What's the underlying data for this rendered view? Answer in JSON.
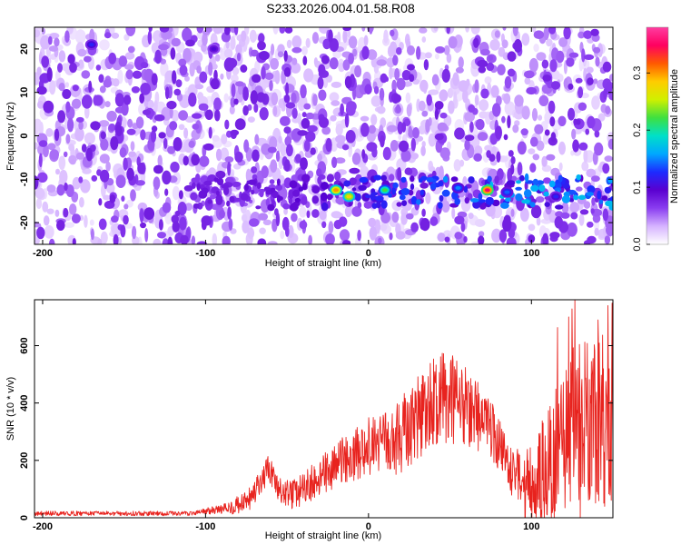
{
  "title": "S233.2026.004.01.58.R08",
  "colors": {
    "series_line": "#e8231e",
    "colormap": [
      "#ffffff",
      "#d6b4ff",
      "#8a3df0",
      "#5a00d0",
      "#1d2bff",
      "#00a8ff",
      "#00e0c8",
      "#3ee040",
      "#d0f000",
      "#ffcc00",
      "#ff5a00",
      "#ff0060",
      "#ff3ca0"
    ]
  },
  "chart_data": [
    {
      "type": "heatmap",
      "xlabel": "Height of straight line (km)",
      "ylabel": "Frequency (Hz)",
      "xlim": [
        -205,
        150
      ],
      "ylim": [
        -25,
        25
      ],
      "xticks": [
        -200,
        -100,
        0,
        100
      ],
      "yticks": [
        -20,
        -10,
        0,
        10,
        20
      ],
      "xtick_labels": [
        "-200",
        "-100",
        "0",
        "100"
      ],
      "ytick_labels": [
        "-20",
        "-10",
        "0",
        "10",
        "20"
      ],
      "colorbar": {
        "label": "Normalized spectral amplitude",
        "range": [
          0,
          0.38
        ],
        "ticks": [
          0.0,
          0.1,
          0.2,
          0.3
        ],
        "tick_labels": [
          "0.0",
          "0.1",
          "0.2",
          "0.3"
        ]
      },
      "hot_band": {
        "frequency": -13,
        "x_from": -110,
        "x_to": 150
      },
      "peaks": [
        {
          "x": -20,
          "frequency": -12.5,
          "value": 0.3
        },
        {
          "x": -12,
          "frequency": -14,
          "value": 0.28
        },
        {
          "x": 10,
          "frequency": -12.5,
          "value": 0.22
        },
        {
          "x": 73,
          "frequency": -12.5,
          "value": 0.35
        },
        {
          "x": 55,
          "frequency": -12,
          "value": 0.15
        },
        {
          "x": 85,
          "frequency": -13,
          "value": 0.14
        },
        {
          "x": -95,
          "frequency": 20,
          "value": 0.1
        },
        {
          "x": -170,
          "frequency": 21,
          "value": 0.12
        },
        {
          "x": 115,
          "frequency": -14,
          "value": 0.12
        }
      ]
    },
    {
      "type": "line",
      "xlabel": "Height of straight line (km)",
      "ylabel": "SNR (10 * v/v)",
      "xlim": [
        -205,
        150
      ],
      "ylim": [
        0,
        760
      ],
      "xticks": [
        -200,
        -100,
        0,
        100
      ],
      "yticks": [
        0,
        200,
        400,
        600
      ],
      "xtick_labels": [
        "-200",
        "-100",
        "0",
        "100"
      ],
      "ytick_labels": [
        "0",
        "200",
        "400",
        "600"
      ],
      "envelope": {
        "x": [
          -205,
          -110,
          -90,
          -75,
          -65,
          -62,
          -55,
          -45,
          -30,
          -15,
          0,
          15,
          25,
          35,
          45,
          55,
          65,
          75,
          85,
          95,
          105,
          115,
          125,
          135,
          145,
          150
        ],
        "y": [
          15,
          15,
          30,
          50,
          120,
          180,
          90,
          80,
          140,
          200,
          250,
          260,
          320,
          380,
          420,
          400,
          380,
          300,
          190,
          130,
          150,
          230,
          320,
          350,
          300,
          320
        ]
      },
      "noise_amplitude": {
        "x": [
          -205,
          -110,
          -90,
          -70,
          -50,
          -20,
          0,
          25,
          45,
          65,
          80,
          95,
          110,
          125,
          140,
          150
        ],
        "y": [
          8,
          8,
          15,
          50,
          50,
          80,
          100,
          140,
          170,
          140,
          100,
          90,
          200,
          280,
          300,
          280
        ]
      },
      "max_value": 760
    }
  ]
}
